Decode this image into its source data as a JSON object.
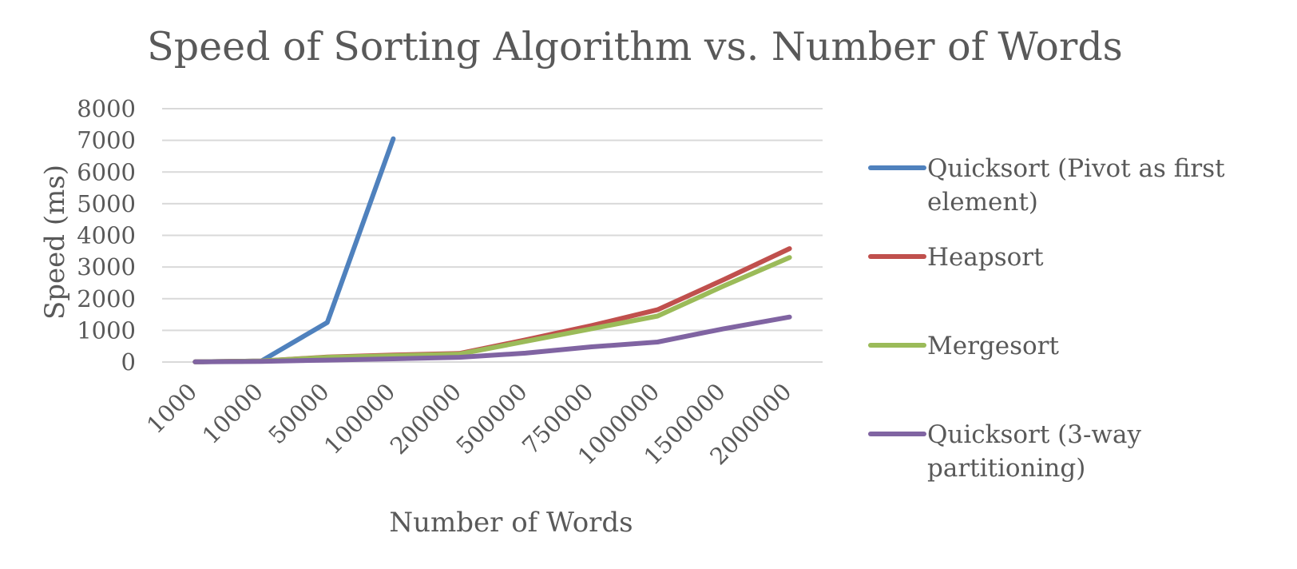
{
  "chart_data": {
    "type": "line",
    "title": "Speed of Sorting Algorithm vs. Number of Words",
    "xlabel": "Number of Words",
    "ylabel": "Speed (ms)",
    "categories": [
      "1000",
      "10000",
      "50000",
      "100000",
      "200000",
      "500000",
      "750000",
      "1000000",
      "1500000",
      "2000000"
    ],
    "ylim": [
      0,
      8000
    ],
    "yticks": [
      "0",
      "1000",
      "2000",
      "3000",
      "4000",
      "5000",
      "6000",
      "7000",
      "8000"
    ],
    "grid": true,
    "legend_position": "right",
    "series": [
      {
        "name": "Quicksort (Pivot as first element)",
        "legend_lines": [
          "Quicksort (Pivot as first",
          "element)"
        ],
        "color": "#4f81bd",
        "values": [
          5,
          30,
          1250,
          7050,
          null,
          null,
          null,
          null,
          null,
          null
        ]
      },
      {
        "name": "Heapsort",
        "legend_lines": [
          "Heapsort"
        ],
        "color": "#c0504d",
        "values": [
          5,
          30,
          160,
          220,
          270,
          700,
          1150,
          1650,
          2600,
          3580
        ]
      },
      {
        "name": "Mergesort",
        "legend_lines": [
          "Mergesort"
        ],
        "color": "#9bbb59",
        "values": [
          5,
          30,
          150,
          200,
          250,
          650,
          1050,
          1450,
          2400,
          3300
        ]
      },
      {
        "name": "Quicksort (3-way partitioning)",
        "legend_lines": [
          "Quicksort (3-way",
          "partitioning)"
        ],
        "color": "#8064a2",
        "values": [
          5,
          20,
          60,
          100,
          150,
          280,
          480,
          630,
          1050,
          1420
        ]
      }
    ]
  }
}
